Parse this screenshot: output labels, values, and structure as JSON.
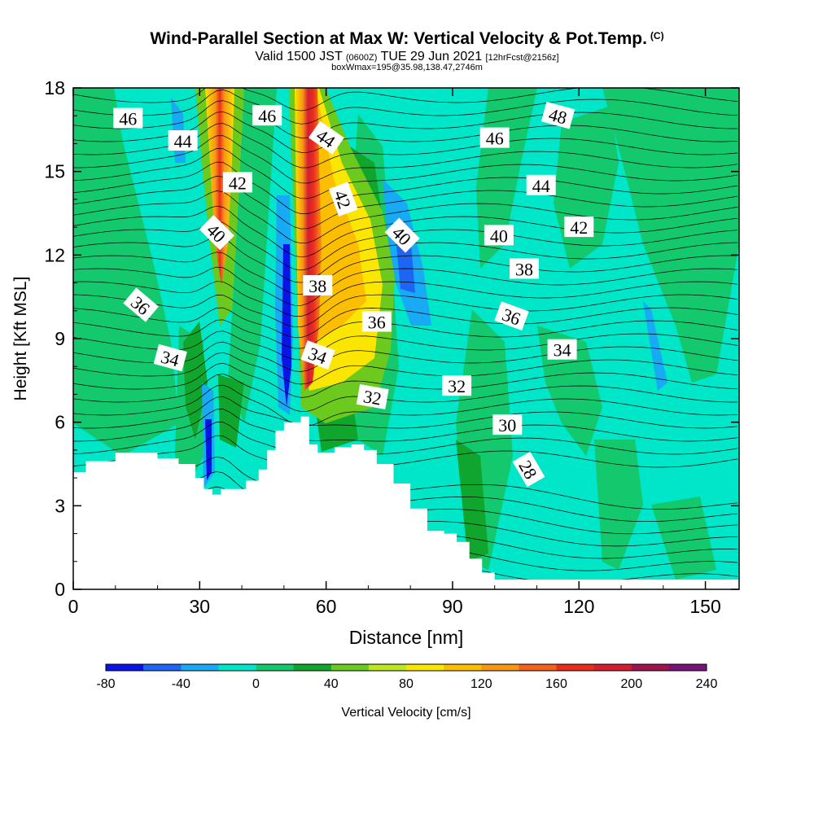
{
  "title": {
    "main": "Wind-Parallel Section at Max W: Vertical Velocity & Pot.Temp.",
    "copyright": "(C)",
    "valid_prefix": "Valid 1500 JST",
    "utc": "(0600Z)",
    "valid_date": "TUE 29 Jun 2021",
    "forecast": "[12hrFcst@2156z]",
    "box": "boxWmax=195@35.98,138.47,2746m"
  },
  "chart_data": {
    "type": "heatmap",
    "xlabel": "Distance [nm]",
    "ylabel": "Height [Kft MSL]",
    "xlim": [
      0,
      158
    ],
    "ylim": [
      0,
      18
    ],
    "xticks": [
      0,
      30,
      60,
      90,
      120,
      150
    ],
    "yticks": [
      0,
      3,
      6,
      9,
      12,
      15,
      18
    ],
    "colorbar": {
      "label": "Vertical Velocity [cm/s]",
      "levels": [
        -80,
        -60,
        -40,
        -20,
        0,
        20,
        40,
        60,
        80,
        100,
        120,
        140,
        160,
        180,
        200,
        220,
        240
      ],
      "colors": [
        "#0a14e6",
        "#1e64f5",
        "#19aaf5",
        "#00e6c8",
        "#14c86e",
        "#10a62e",
        "#6cca1e",
        "#bce61e",
        "#fae600",
        "#fcbe00",
        "#f79614",
        "#f2641e",
        "#eb2d1e",
        "#d21e32",
        "#a01450",
        "#781478"
      ],
      "tick_labels": [
        "-80",
        "-40",
        "0",
        "40",
        "80",
        "120",
        "160",
        "200",
        "240"
      ]
    },
    "terrain_kft": [
      [
        0,
        4.2
      ],
      [
        3,
        4.6
      ],
      [
        10,
        4.9
      ],
      [
        20,
        4.7
      ],
      [
        25,
        4.5
      ],
      [
        29,
        4.0
      ],
      [
        31,
        3.6
      ],
      [
        33,
        3.4
      ],
      [
        35,
        3.6
      ],
      [
        41,
        3.9
      ],
      [
        44,
        4.3
      ],
      [
        46,
        5.0
      ],
      [
        48,
        5.7
      ],
      [
        50,
        6.0
      ],
      [
        54,
        6.2
      ],
      [
        56,
        5.2
      ],
      [
        58,
        4.9
      ],
      [
        62,
        5.1
      ],
      [
        66,
        5.2
      ],
      [
        69,
        5.0
      ],
      [
        72,
        4.5
      ],
      [
        76,
        3.8
      ],
      [
        80,
        2.9
      ],
      [
        84,
        2.1
      ],
      [
        88,
        2.0
      ],
      [
        91,
        1.7
      ],
      [
        94,
        1.1
      ],
      [
        97,
        0.6
      ],
      [
        100,
        0.35
      ],
      [
        158,
        0.35
      ]
    ],
    "theta_labels": [
      {
        "text": "46",
        "x": 13,
        "y": 16.9,
        "rot": 0
      },
      {
        "text": "44",
        "x": 26,
        "y": 16.1,
        "rot": 0
      },
      {
        "text": "46",
        "x": 46,
        "y": 17.0,
        "rot": 0
      },
      {
        "text": "44",
        "x": 60,
        "y": 16.2,
        "rot": 35
      },
      {
        "text": "48",
        "x": 115,
        "y": 17.0,
        "rot": 15
      },
      {
        "text": "46",
        "x": 100,
        "y": 16.2,
        "rot": 0
      },
      {
        "text": "42",
        "x": 39,
        "y": 14.6,
        "rot": 0
      },
      {
        "text": "42",
        "x": 64,
        "y": 14.0,
        "rot": 70
      },
      {
        "text": "44",
        "x": 111,
        "y": 14.5,
        "rot": 0
      },
      {
        "text": "40",
        "x": 34,
        "y": 12.8,
        "rot": 45
      },
      {
        "text": "40",
        "x": 78,
        "y": 12.7,
        "rot": 45
      },
      {
        "text": "40",
        "x": 101,
        "y": 12.7,
        "rot": 0
      },
      {
        "text": "42",
        "x": 120,
        "y": 13.0,
        "rot": 0
      },
      {
        "text": "38",
        "x": 58,
        "y": 10.9,
        "rot": 0
      },
      {
        "text": "38",
        "x": 107,
        "y": 11.5,
        "rot": 0
      },
      {
        "text": "36",
        "x": 16,
        "y": 10.2,
        "rot": 40
      },
      {
        "text": "36",
        "x": 72,
        "y": 9.6,
        "rot": 0
      },
      {
        "text": "36",
        "x": 104,
        "y": 9.8,
        "rot": 20
      },
      {
        "text": "34",
        "x": 23,
        "y": 8.3,
        "rot": 15
      },
      {
        "text": "34",
        "x": 58,
        "y": 8.4,
        "rot": 20
      },
      {
        "text": "34",
        "x": 116,
        "y": 8.6,
        "rot": 0
      },
      {
        "text": "32",
        "x": 71,
        "y": 6.9,
        "rot": 10
      },
      {
        "text": "32",
        "x": 91,
        "y": 7.3,
        "rot": 0
      },
      {
        "text": "30",
        "x": 103,
        "y": 5.9,
        "rot": 0
      },
      {
        "text": "28",
        "x": 108,
        "y": 4.3,
        "rot": 60
      }
    ]
  }
}
